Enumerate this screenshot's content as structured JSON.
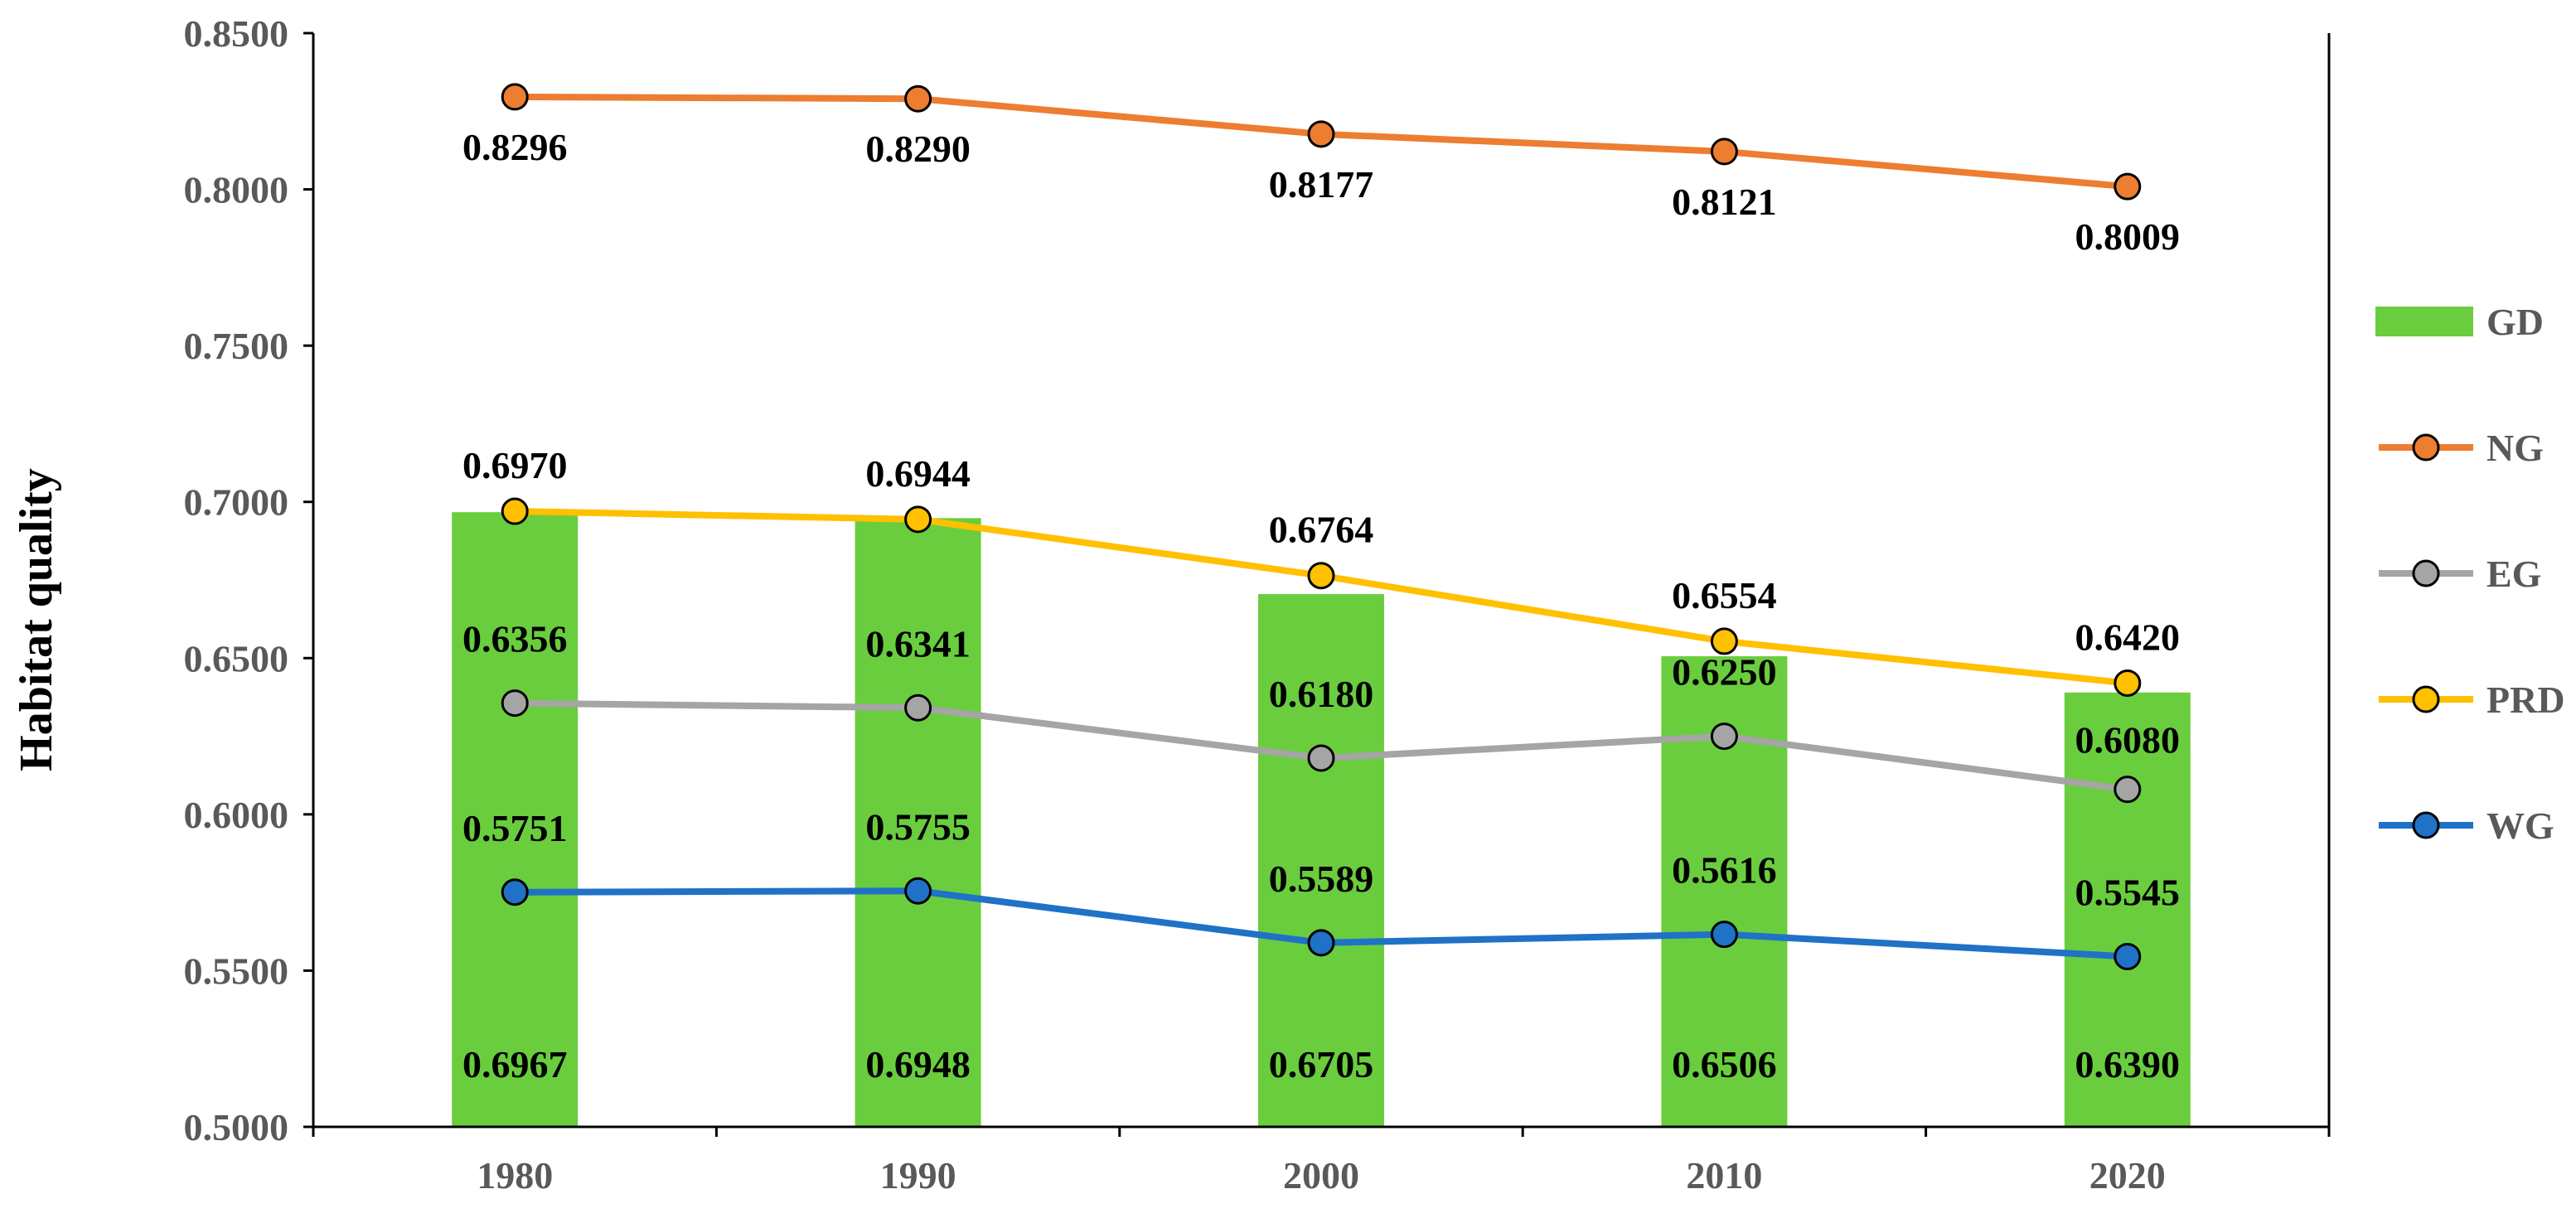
{
  "chart_data": {
    "type": "bar",
    "title": "",
    "xlabel": "",
    "ylabel": "Habitat quality",
    "ylim": [
      0.5,
      0.85
    ],
    "ytick_step": 0.05,
    "ytick_decimals": 4,
    "grid": false,
    "legend_position": "right",
    "categories": [
      "1980",
      "1990",
      "2000",
      "2010",
      "2020"
    ],
    "bar_series": {
      "name": "GD",
      "color": "#6ACD3E",
      "values": [
        0.6967,
        0.6948,
        0.6705,
        0.6506,
        0.639
      ],
      "labels": [
        "0.6967",
        "0.6948",
        "0.6705",
        "0.6506",
        "0.6390"
      ]
    },
    "line_series": [
      {
        "name": "NG",
        "color": "#ED7D31",
        "values": [
          0.8296,
          0.829,
          0.8177,
          0.8121,
          0.8009
        ],
        "labels": [
          "0.8296",
          "0.8290",
          "0.8177",
          "0.8121",
          "0.8009"
        ]
      },
      {
        "name": "EG",
        "color": "#A5A5A5",
        "values": [
          0.6356,
          0.6341,
          0.618,
          0.625,
          0.608
        ],
        "labels": [
          "0.6356",
          "0.6341",
          "0.6180",
          "0.6250",
          "0.6080"
        ]
      },
      {
        "name": "PRD",
        "color": "#FFC000",
        "values": [
          0.697,
          0.6944,
          0.6764,
          0.6554,
          0.642
        ],
        "labels": [
          "0.6970",
          "0.6944",
          "0.6764",
          "0.6554",
          "0.6420"
        ]
      },
      {
        "name": "WG",
        "color": "#1F72C6",
        "values": [
          0.5751,
          0.5755,
          0.5589,
          0.5616,
          0.5545
        ],
        "labels": [
          "0.5751",
          "0.5755",
          "0.5589",
          "0.5616",
          "0.5545"
        ]
      }
    ]
  }
}
